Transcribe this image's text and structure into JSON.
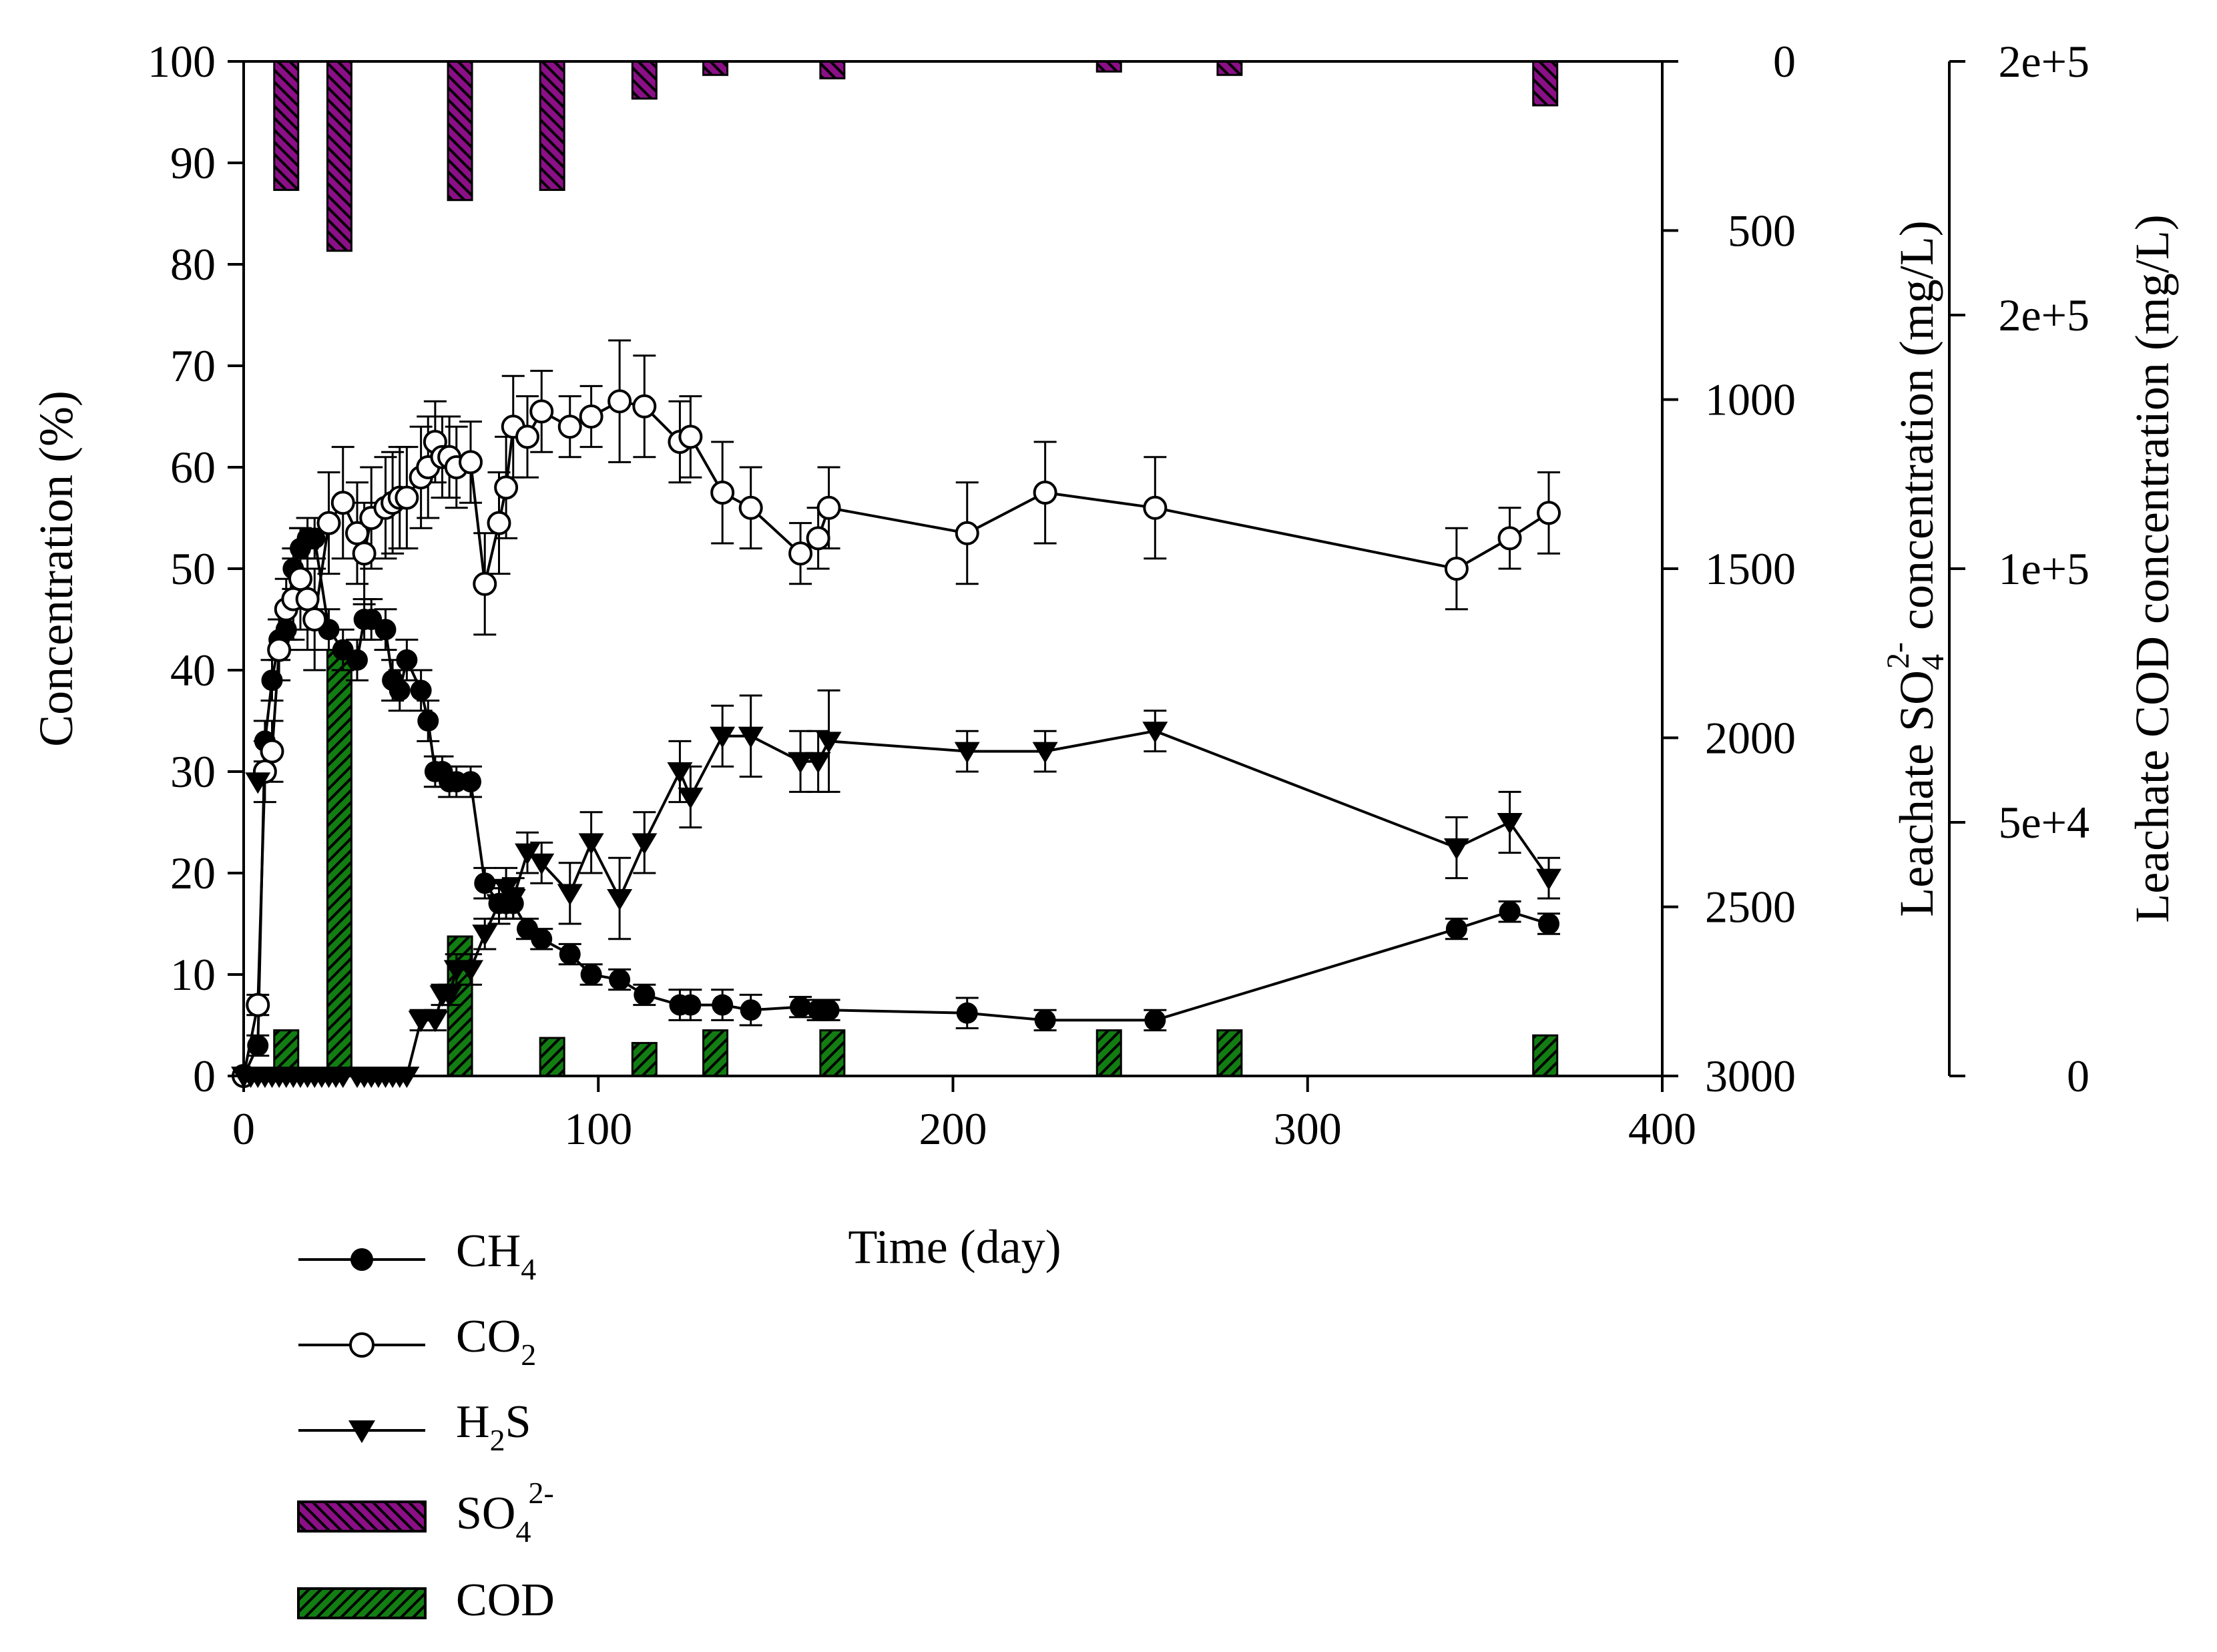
{
  "colors": {
    "so4_bar": "#8b0f86",
    "cod_bar": "#127d12",
    "line": "#000000"
  },
  "labels": {
    "y_left": "Concentration (%)",
    "x": "Time (day)",
    "y_mid_pre": "Leachate SO",
    "y_mid_sub": "4",
    "y_mid_sup": "2-",
    "y_mid_post": " concentration (mg/L)",
    "y_right": "Leachate COD concentration (mg/L)"
  },
  "legend": {
    "ch4": {
      "main": "CH",
      "sub": "4"
    },
    "co2": {
      "main": "CO",
      "sub": "2"
    },
    "h2s": {
      "pre": "H",
      "sub": "2",
      "post": "S"
    },
    "so4": {
      "main": "SO",
      "sub": "4",
      "sup": "2-"
    },
    "cod": {
      "main": "COD"
    }
  },
  "chart_data": {
    "type": "line+bar",
    "xlabel": "Time (day)",
    "xlim": [
      0,
      400
    ],
    "x_ticks": [
      "0",
      "100",
      "200",
      "300",
      "400"
    ],
    "y_left": {
      "label": "Concentration (%)",
      "lim": [
        0,
        100
      ],
      "ticks": [
        "0",
        "10",
        "20",
        "30",
        "40",
        "50",
        "60",
        "70",
        "80",
        "90",
        "100"
      ]
    },
    "y_mid": {
      "label": "Leachate SO4 2- concentration (mg/L)",
      "lim": [
        0,
        3000
      ],
      "inverted": true,
      "ticks": [
        "0",
        "500",
        "1000",
        "1500",
        "2000",
        "2500",
        "3000"
      ]
    },
    "y_right": {
      "label": "Leachate COD concentration (mg/L)",
      "lim": [
        0,
        200000
      ],
      "tick_values": [
        0,
        50000,
        100000,
        150000,
        200000
      ],
      "ticks": [
        "0",
        "5e+4",
        "1e+5",
        "2e+5",
        "2e+5"
      ]
    },
    "series": [
      {
        "name": "CH4",
        "marker": "filled-circle",
        "x": [
          0,
          4,
          6,
          8,
          10,
          12,
          14,
          16,
          18,
          20,
          24,
          28,
          32,
          34,
          36,
          40,
          42,
          44,
          46,
          50,
          52,
          54,
          56,
          58,
          60,
          64,
          68,
          72,
          74,
          76,
          80,
          84,
          92,
          98,
          106,
          113,
          123,
          126,
          135,
          143,
          157,
          162,
          165,
          204,
          226,
          257,
          342,
          357,
          368
        ],
        "y": [
          0,
          3,
          33,
          39,
          43,
          44,
          50,
          52,
          53,
          53,
          44,
          42,
          41,
          45,
          45,
          44,
          39,
          38,
          41,
          38,
          35,
          30,
          30,
          29,
          29,
          29,
          19,
          17,
          17,
          17,
          14.5,
          13.5,
          12,
          10,
          9.5,
          8,
          7,
          7,
          7,
          6.5,
          6.8,
          6.5,
          6.5,
          6.2,
          5.5,
          5.5,
          14.5,
          16.2,
          15
        ],
        "err": [
          0,
          1,
          2,
          2,
          2,
          2,
          2,
          2,
          2,
          2,
          2,
          2,
          2,
          2,
          2,
          2,
          2,
          2,
          2,
          2,
          2,
          1.5,
          1.5,
          1.5,
          1.5,
          1.5,
          1.5,
          1.5,
          1.5,
          1.5,
          1,
          1,
          1,
          1,
          1,
          1,
          1.5,
          1.5,
          1.5,
          1.5,
          1,
          1,
          1,
          1.5,
          1,
          1,
          1,
          1,
          1
        ]
      },
      {
        "name": "CO2",
        "marker": "open-circle",
        "x": [
          0,
          4,
          6,
          8,
          10,
          12,
          14,
          16,
          18,
          20,
          24,
          28,
          32,
          34,
          36,
          40,
          42,
          44,
          46,
          50,
          52,
          54,
          56,
          58,
          60,
          64,
          68,
          72,
          74,
          76,
          80,
          84,
          92,
          98,
          106,
          113,
          123,
          126,
          135,
          143,
          157,
          162,
          165,
          204,
          226,
          257,
          342,
          357,
          368
        ],
        "y": [
          0,
          7,
          30,
          32,
          42,
          46,
          47,
          49,
          47,
          45,
          54.5,
          56.5,
          53.5,
          51.5,
          55,
          56,
          56.5,
          57,
          57,
          59,
          60,
          62.5,
          61,
          61,
          60,
          60.5,
          48.5,
          54.5,
          58,
          64,
          63,
          65.5,
          64,
          65,
          66.5,
          66,
          62.5,
          63,
          57.5,
          56,
          51.5,
          53,
          56,
          53.5,
          57.5,
          56,
          50,
          53,
          55.5
        ],
        "err": [
          0,
          1,
          3,
          3,
          3,
          3,
          4,
          5,
          5,
          5,
          5,
          5.5,
          5,
          5,
          5,
          5,
          5,
          5,
          5,
          5,
          5,
          4,
          4,
          4,
          4,
          4,
          5,
          5,
          5,
          5,
          4,
          4,
          3,
          3,
          6,
          5,
          4,
          4,
          5,
          4,
          3,
          3,
          4,
          5,
          5,
          5,
          4,
          3,
          4
        ]
      },
      {
        "name": "H2S",
        "marker": "filled-triangle-down",
        "x": [
          0,
          2,
          4,
          6,
          8,
          10,
          12,
          14,
          16,
          18,
          20,
          22,
          24,
          26,
          28,
          32,
          34,
          36,
          38,
          40,
          42,
          44,
          46,
          50,
          54,
          56,
          58,
          60,
          64,
          68,
          72,
          74,
          76,
          80,
          84,
          92,
          98,
          106,
          113,
          123,
          126,
          135,
          143,
          157,
          162,
          165,
          204,
          226,
          257,
          342,
          357,
          368
        ],
        "y": [
          0,
          0,
          0,
          0,
          0,
          0,
          0,
          0,
          0,
          0,
          0,
          0,
          0,
          0,
          0,
          0,
          0,
          0,
          0,
          0,
          0,
          0,
          0,
          5.5,
          5.5,
          8,
          8,
          10.5,
          10.5,
          14,
          17,
          18.5,
          17.5,
          22,
          21,
          18,
          23,
          17.5,
          23,
          30,
          27.5,
          33.5,
          33.5,
          31,
          31,
          33,
          32,
          32,
          34,
          22.5,
          25,
          19.5
        ],
        "err": [
          0,
          0,
          0,
          0,
          0,
          0,
          0,
          0,
          0,
          0,
          0,
          0,
          0,
          0,
          0,
          0,
          0,
          0,
          0,
          0,
          0,
          0,
          0,
          1,
          1,
          1,
          1,
          1.5,
          1.5,
          1.5,
          2,
          2,
          2,
          2,
          2,
          3,
          3,
          4,
          3,
          3,
          3,
          3,
          4,
          3,
          3,
          5,
          2,
          2,
          2,
          3,
          3,
          2
        ],
        "extra_points": [
          {
            "x": 4,
            "y": 29,
            "err": 0
          }
        ]
      },
      {
        "name": "SO4 2-",
        "type": "bar",
        "axis": "y_mid",
        "x": [
          12,
          27,
          61,
          87,
          113,
          133,
          166,
          244,
          278,
          367
        ],
        "values": [
          380,
          560,
          410,
          380,
          110,
          40,
          50,
          30,
          40,
          130
        ]
      },
      {
        "name": "COD",
        "type": "bar",
        "axis": "y_right",
        "x": [
          12,
          27,
          61,
          87,
          113,
          133,
          166,
          244,
          278,
          367
        ],
        "values": [
          9000,
          84000,
          27500,
          7500,
          6500,
          9000,
          9000,
          9000,
          9000,
          8000
        ]
      }
    ]
  }
}
